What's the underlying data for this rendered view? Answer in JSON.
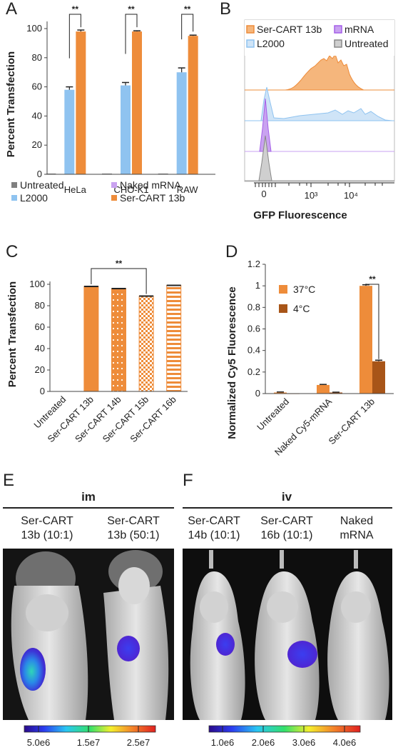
{
  "panels": {
    "A": {
      "letter": "A"
    },
    "B": {
      "letter": "B"
    },
    "C": {
      "letter": "C"
    },
    "D": {
      "letter": "D"
    },
    "E": {
      "letter": "E",
      "group_label": "im",
      "mice": [
        {
          "label1": "Ser-CART",
          "label2": "13b (10:1)"
        },
        {
          "label1": "Ser-CART",
          "label2": "13b (50:1)"
        }
      ],
      "colorbar_ticks": [
        "5.0e6",
        "1.5e7",
        "2.5e7"
      ]
    },
    "F": {
      "letter": "F",
      "group_label": "iv",
      "mice": [
        {
          "label1": "Ser-CART",
          "label2": "14b (10:1)"
        },
        {
          "label1": "Ser-CART",
          "label2": "16b (10:1)"
        },
        {
          "label1": "Naked",
          "label2": "mRNA"
        }
      ],
      "colorbar_ticks": [
        "1.0e6",
        "2.0e6",
        "3.0e6",
        "4.0e6"
      ]
    }
  },
  "colors": {
    "untreated": "#808080",
    "l2000": "#8fc3f0",
    "naked": "#c9a2f0",
    "sercart": "#ee8c3a",
    "warm": "#ee8c3a",
    "cold": "#a85518"
  },
  "chart_data": [
    {
      "id": "A",
      "type": "bar",
      "categories": [
        "HeLa",
        "CHO-K1",
        "RAW"
      ],
      "ylabel": "Percent Transfection",
      "ylim": [
        0,
        100
      ],
      "yticks": [
        "0",
        "20",
        "40",
        "60",
        "80",
        "100"
      ],
      "series": [
        {
          "name": "Untreated",
          "values": [
            0.5,
            0.5,
            0.5
          ]
        },
        {
          "name": "Naked mRNA",
          "values": [
            0,
            0,
            0
          ]
        },
        {
          "name": "L2000",
          "values": [
            58,
            61,
            70
          ]
        },
        {
          "name": "Ser-CART 13b",
          "values": [
            98,
            98,
            95
          ]
        }
      ],
      "errors": {
        "L2000": [
          2,
          2,
          3
        ],
        "Ser-CART 13b": [
          1,
          0.5,
          0.5
        ]
      },
      "significance": [
        "**",
        "**",
        "**"
      ],
      "legend": [
        "Untreated",
        "Naked mRNA",
        "L2000",
        "Ser-CART 13b"
      ]
    },
    {
      "id": "B",
      "type": "area",
      "xlabel": "GFP Fluorescence",
      "xticks": [
        "0",
        "10³",
        "10⁴"
      ],
      "series": [
        {
          "name": "Ser-CART 13b",
          "peak_log": 3.7
        },
        {
          "name": "L2000",
          "peak_log": 0.3
        },
        {
          "name": "mRNA",
          "peak_log": 0.3
        },
        {
          "name": "Untreated",
          "peak_log": 0.3
        }
      ]
    },
    {
      "id": "C",
      "type": "bar",
      "categories": [
        "Untreated",
        "Ser-CART 13b",
        "Ser-CART 14b",
        "Ser-CART 15b",
        "Ser-CART 16b"
      ],
      "values": [
        0,
        98,
        96,
        89,
        99
      ],
      "ylabel": "Percent Transfection",
      "ylim": [
        0,
        100
      ],
      "yticks": [
        "0",
        "20",
        "40",
        "60",
        "80",
        "100"
      ],
      "significance": "**"
    },
    {
      "id": "D",
      "type": "bar",
      "categories": [
        "Untreated",
        "Naked Cy5-mRNA",
        "Ser-CART 13b"
      ],
      "ylabel": "Normalized Cy5 Fluorescence",
      "ylim": [
        0,
        1.2
      ],
      "yticks": [
        "0",
        "0.2",
        "0.4",
        "0.6",
        "0.8",
        "1",
        "1.2"
      ],
      "series": [
        {
          "name": "37°C",
          "values": [
            0.01,
            0.08,
            1.0
          ]
        },
        {
          "name": "4°C",
          "values": [
            0.0,
            0.01,
            0.3
          ]
        }
      ],
      "errors": {
        "37°C": [
          0.005,
          0.005,
          0.01
        ],
        "4°C": [
          0.0,
          0.003,
          0.01
        ]
      },
      "significance": "**"
    }
  ]
}
